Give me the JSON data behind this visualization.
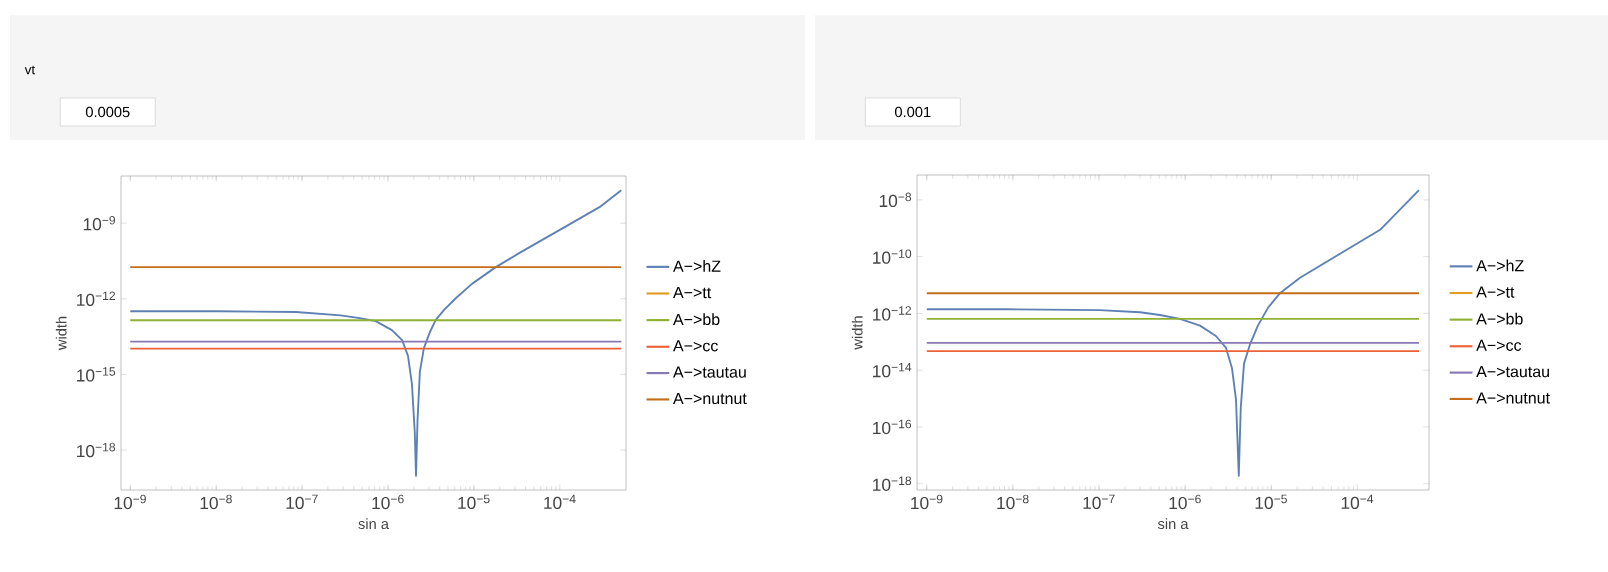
{
  "chart_data": [
    {
      "type": "line",
      "xlabel": "sin a",
      "ylabel": "width",
      "log": "xy",
      "legend": "right",
      "grid": false,
      "marker": "none",
      "line_style": "solid",
      "annotations": [
        "vt",
        "0.0005"
      ],
      "xlim": [
        7.8e-10,
        0.00059
      ],
      "ylim": [
        2.6e-20,
        7.4e-08
      ],
      "xticks": [
        {
          "value": 1e-09,
          "label": "10$^{−9}$"
        },
        {
          "value": 1e-08,
          "label": "10$^{−8}$"
        },
        {
          "value": 1e-07,
          "label": "10$^{−7}$"
        },
        {
          "value": 1e-06,
          "label": "10$^{−6}$"
        },
        {
          "value": 1e-05,
          "label": "10$^{−5}$"
        },
        {
          "value": 0.0001,
          "label": "10$^{−4}$"
        }
      ],
      "yticks": [
        {
          "value": 1e-09,
          "label": "10$^{−9}$"
        },
        {
          "value": 1e-12,
          "label": "10$^{−12}$"
        },
        {
          "value": 1e-15,
          "label": "10$^{−15}$"
        },
        {
          "value": 1e-18,
          "label": "10$^{−18}$"
        }
      ],
      "series": [
        {
          "name": "A−>hZ",
          "color": "#5e81b5",
          "x": [
            1e-09,
            1e-08,
            8.5e-08,
            2.8e-07,
            4.7e-07,
            7.2e-07,
            1.11e-06,
            1.46e-06,
            1.71e-06,
            1.9e-06,
            2.05e-06,
            2.12e-06,
            2.21e-06,
            2.35e-06,
            2.62e-06,
            3.08e-06,
            3.6e-06,
            4.5e-06,
            6.2e-06,
            9.5e-06,
            1.8e-05,
            3.4e-05,
            0.0001,
            0.00029,
            0.00052
          ],
          "values": [
            3.2e-13,
            3.2e-13,
            3e-13,
            2.2e-13,
            1.7e-13,
            1.3e-13,
            5.7e-14,
            2.3e-14,
            5.4e-15,
            4.2e-16,
            5.2e-18,
            9.5e-20,
            1.6e-17,
            1.26e-15,
            1.1e-14,
            4.8e-14,
            1.45e-13,
            3.6e-13,
            1.07e-12,
            3.9e-12,
            1.8e-11,
            6.6e-11,
            5.4e-10,
            4.3e-09,
            2e-08
          ]
        },
        {
          "name": "A−>tt",
          "color": "#e19c24"
        },
        {
          "name": "A−>bb",
          "color": "#8fb032",
          "x": [
            1e-09,
            0.00052
          ],
          "values": [
            1.4e-13,
            1.4e-13
          ]
        },
        {
          "name": "A−>cc",
          "color": "#eb6235",
          "x": [
            1e-09,
            0.00052
          ],
          "values": [
            1.05e-14,
            1.05e-14
          ]
        },
        {
          "name": "A−>tautau",
          "color": "#8778b3",
          "x": [
            1e-09,
            0.00052
          ],
          "values": [
            2e-14,
            2e-14
          ]
        },
        {
          "name": "A−>nutnut",
          "color": "#c56e1a",
          "x": [
            1e-09,
            0.00052
          ],
          "values": [
            1.8e-11,
            1.8e-11
          ]
        }
      ]
    },
    {
      "type": "line",
      "xlabel": "sin a",
      "ylabel": "width",
      "log": "xy",
      "legend": "right",
      "grid": false,
      "marker": "none",
      "line_style": "solid",
      "annotations": [
        "0.001"
      ],
      "xlim": [
        7.7e-10,
        0.00068
      ],
      "ylim": [
        6e-19,
        7.5e-08
      ],
      "xticks": [
        {
          "value": 1e-09,
          "label": "10$^{−9}$"
        },
        {
          "value": 1e-08,
          "label": "10$^{−8}$"
        },
        {
          "value": 1e-07,
          "label": "10$^{−7}$"
        },
        {
          "value": 1e-06,
          "label": "10$^{−6}$"
        },
        {
          "value": 1e-05,
          "label": "10$^{−5}$"
        },
        {
          "value": 0.0001,
          "label": "10$^{−4}$"
        }
      ],
      "yticks": [
        {
          "value": 1e-08,
          "label": "10$^{−8}$"
        },
        {
          "value": 1e-10,
          "label": "10$^{−10}$"
        },
        {
          "value": 1e-12,
          "label": "10$^{−12}$"
        },
        {
          "value": 1e-14,
          "label": "10$^{−14}$"
        },
        {
          "value": 1e-16,
          "label": "10$^{−16}$"
        },
        {
          "value": 1e-18,
          "label": "10$^{−18}$"
        }
      ],
      "series": [
        {
          "name": "A−>hZ",
          "color": "#5e81b5",
          "x": [
            1e-09,
            8.7e-09,
            1.02e-07,
            3e-07,
            5.1e-07,
            8.7e-07,
            1.49e-06,
            2.28e-06,
            2.98e-06,
            3.5e-06,
            3.9e-06,
            4.2e-06,
            4.43e-06,
            4.83e-06,
            5.7e-06,
            7e-06,
            9.2e-06,
            1.26e-05,
            2.16e-05,
            6.3e-05,
            0.000184,
            0.00052
          ],
          "values": [
            1.4e-12,
            1.4e-12,
            1.3e-12,
            1.1e-12,
            8.8e-13,
            6.4e-13,
            3.7e-13,
            1.6e-13,
            6.2e-14,
            1.2e-14,
            9.1e-16,
            1.9e-18,
            4.7e-16,
            1.7e-14,
            8.5e-14,
            3.7e-13,
            1.6e-12,
            5.1e-12,
            1.8e-11,
            1.26e-10,
            8.8e-10,
            2.2e-08
          ]
        },
        {
          "name": "A−>tt",
          "color": "#e19c24"
        },
        {
          "name": "A−>bb",
          "color": "#8fb032",
          "x": [
            1e-09,
            0.00052
          ],
          "values": [
            6.4e-13,
            6.4e-13
          ]
        },
        {
          "name": "A−>cc",
          "color": "#eb6235",
          "x": [
            1e-09,
            0.00052
          ],
          "values": [
            4.7e-14,
            4.7e-14
          ]
        },
        {
          "name": "A−>tautau",
          "color": "#8778b3",
          "x": [
            1e-09,
            0.00052
          ],
          "values": [
            9.1e-14,
            9.1e-14
          ]
        },
        {
          "name": "A−>nutnut",
          "color": "#c56e1a",
          "x": [
            1e-09,
            0.00052
          ],
          "values": [
            5.1e-12,
            5.1e-12
          ]
        }
      ]
    }
  ]
}
